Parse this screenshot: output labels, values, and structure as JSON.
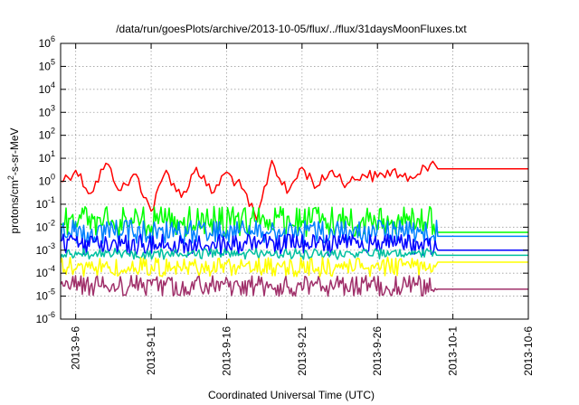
{
  "chart_data": {
    "type": "line",
    "title": "/data/run/goesPlots/archive/2013-10-05/flux/../flux/31daysMoonFluxes.txt",
    "xlabel": "Coordinated Universal Time (UTC)",
    "ylabel": {
      "base": "protons/cm",
      "sup": "2",
      "rest": "-s-sr-MeV"
    },
    "x_scale": "time",
    "xlim": [
      "2013-09-05",
      "2013-10-06"
    ],
    "x_ticks": [
      "2013-9-6",
      "2013-9-11",
      "2013-9-16",
      "2013-9-21",
      "2013-9-26",
      "2013-10-1",
      "2013-10-6"
    ],
    "y_scale": "log",
    "ylim": [
      1e-06,
      1000000.0
    ],
    "y_ticks": [
      {
        "base": "10",
        "exp": "-6"
      },
      {
        "base": "10",
        "exp": "-5"
      },
      {
        "base": "10",
        "exp": "-4"
      },
      {
        "base": "10",
        "exp": "-3"
      },
      {
        "base": "10",
        "exp": "-2"
      },
      {
        "base": "10",
        "exp": "-1"
      },
      {
        "base": "10",
        "exp": "0"
      },
      {
        "base": "10",
        "exp": "1"
      },
      {
        "base": "10",
        "exp": "2"
      },
      {
        "base": "10",
        "exp": "3"
      },
      {
        "base": "10",
        "exp": "4"
      },
      {
        "base": "10",
        "exp": "5"
      },
      {
        "base": "10",
        "exp": "6"
      }
    ],
    "grid": true,
    "data_end": "2013-09-30",
    "series": [
      {
        "color": "#ff0000",
        "x": [
          "2013-09-05",
          "2013-09-06",
          "2013-09-07",
          "2013-09-08",
          "2013-09-09",
          "2013-09-10",
          "2013-09-11",
          "2013-09-12",
          "2013-09-13",
          "2013-09-14",
          "2013-09-15",
          "2013-09-16",
          "2013-09-17",
          "2013-09-18",
          "2013-09-19",
          "2013-09-20",
          "2013-09-21",
          "2013-09-22",
          "2013-09-23",
          "2013-09-24",
          "2013-09-25",
          "2013-09-26",
          "2013-09-27",
          "2013-09-28",
          "2013-09-29",
          "2013-09-30",
          "2013-10-06"
        ],
        "y": [
          1.0,
          3.0,
          0.3,
          6.0,
          0.4,
          2.0,
          0.05,
          3.0,
          0.2,
          4.0,
          0.3,
          2.5,
          0.5,
          0.02,
          8.0,
          0.3,
          4.0,
          0.6,
          3.0,
          0.8,
          2.0,
          1.5,
          3.0,
          1.0,
          5.0,
          3.5,
          3.5
        ]
      },
      {
        "color": "#00ff00",
        "x": [
          "2013-09-05",
          "2013-09-30",
          "2013-10-06"
        ],
        "y_band": [
          [
            0.004,
            0.08
          ],
          [
            0.006,
            0.006
          ]
        ]
      },
      {
        "color": "#0080ff",
        "x": [
          "2013-09-05",
          "2013-09-30",
          "2013-10-06"
        ],
        "y_band": [
          [
            0.002,
            0.02
          ],
          [
            0.004,
            0.004
          ]
        ]
      },
      {
        "color": "#0000ff",
        "x": [
          "2013-09-05",
          "2013-09-30",
          "2013-10-06"
        ],
        "y_band": [
          [
            0.0006,
            0.005
          ],
          [
            0.001,
            0.001
          ]
        ]
      },
      {
        "color": "#00c0a0",
        "x": [
          "2013-09-05",
          "2013-09-30",
          "2013-10-06"
        ],
        "y_band": [
          [
            0.0004,
            0.0012
          ],
          [
            0.0006,
            0.0006
          ]
        ]
      },
      {
        "color": "#ffff00",
        "x": [
          "2013-09-05",
          "2013-09-30",
          "2013-10-06"
        ],
        "y_band": [
          [
            7e-05,
            0.0005
          ],
          [
            0.0003,
            0.0003
          ]
        ]
      },
      {
        "color": "#a0306a",
        "x": [
          "2013-09-05",
          "2013-09-30",
          "2013-10-06"
        ],
        "y_band": [
          [
            1e-05,
            8e-05
          ],
          [
            2e-05,
            2e-05
          ]
        ]
      }
    ]
  }
}
